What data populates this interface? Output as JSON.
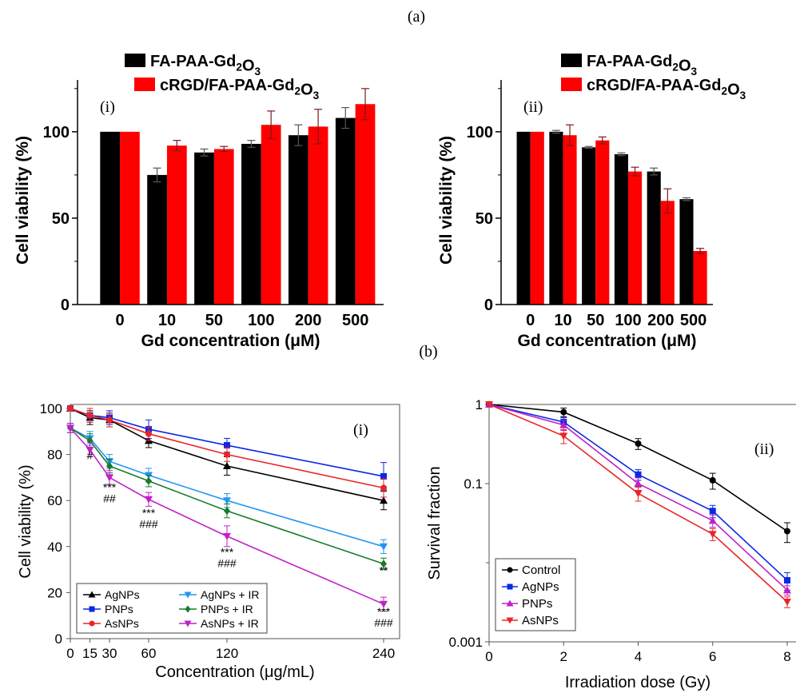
{
  "labels": {
    "a": "(a)",
    "b": "(b)"
  },
  "colors": {
    "black": "#000000",
    "red": "#ff0000",
    "blue": "#0a28e6",
    "green": "#1a7a2a",
    "lightblue": "#2196f3",
    "magenta": "#c020c8",
    "red_line": "#e8262a"
  },
  "chart_data": [
    {
      "id": "a-i",
      "type": "bar",
      "panel_label": "(i)",
      "categories": [
        "0",
        "10",
        "50",
        "100",
        "200",
        "500"
      ],
      "series": [
        {
          "name": "FA-PAA-Gd₂O₃",
          "color": "#000000",
          "values": [
            100,
            75,
            88,
            93,
            98,
            108
          ],
          "errors": [
            0,
            4,
            2,
            2,
            6,
            6
          ]
        },
        {
          "name": "cRGD/FA-PAA-Gd₂O₃",
          "color": "#ff0000",
          "values": [
            100,
            92,
            90,
            104,
            103,
            116
          ],
          "errors": [
            0,
            3,
            1.5,
            8,
            10,
            9
          ]
        }
      ],
      "xlabel": "Gd concentration (μM)",
      "ylabel": "Cell viability (%)",
      "ylim": [
        0,
        130
      ],
      "yticks": [
        "0",
        "50",
        "100"
      ],
      "legend": "top-left"
    },
    {
      "id": "a-ii",
      "type": "bar",
      "panel_label": "(ii)",
      "categories": [
        "0",
        "10",
        "50",
        "100",
        "200",
        "500"
      ],
      "series": [
        {
          "name": "FA-PAA-Gd₂O₃",
          "color": "#000000",
          "values": [
            100,
            100,
            91,
            87,
            77,
            61
          ],
          "errors": [
            0,
            0.8,
            0.5,
            0.8,
            2,
            0.8
          ]
        },
        {
          "name": "cRGD/FA-PAA-Gd₂O₃",
          "color": "#ff0000",
          "values": [
            100,
            98,
            95,
            77,
            60,
            31
          ],
          "errors": [
            0,
            6,
            2,
            2.5,
            7,
            1.5
          ]
        }
      ],
      "xlabel": "Gd concentration (μM)",
      "ylabel": "Cell viability (%)",
      "ylim": [
        0,
        130
      ],
      "yticks": [
        "0",
        "50",
        "100"
      ],
      "legend": "top-left"
    },
    {
      "id": "b-i",
      "type": "line",
      "panel_label": "(i)",
      "x": [
        0,
        15,
        30,
        60,
        120,
        240
      ],
      "xticks": [
        "0",
        "15",
        "30",
        "60",
        "120",
        "240"
      ],
      "series": [
        {
          "name": "AgNPs",
          "color": "#000000",
          "marker": "triangle-up",
          "values": [
            100,
            96,
            95,
            86,
            75,
            60
          ],
          "errors": [
            1,
            3,
            3,
            3,
            4,
            4
          ]
        },
        {
          "name": "PNPs",
          "color": "#0a28e6",
          "marker": "square",
          "values": [
            100,
            97,
            96,
            91,
            84,
            70.5
          ],
          "errors": [
            1,
            3,
            3,
            4,
            3,
            6
          ]
        },
        {
          "name": "AsNPs",
          "color": "#e8262a",
          "marker": "circle",
          "values": [
            100,
            97,
            95,
            89,
            80,
            65.5
          ],
          "errors": [
            1,
            3,
            3,
            3,
            3,
            4
          ]
        },
        {
          "name": "AgNPs + IR",
          "color": "#2196f3",
          "marker": "triangle-down",
          "values": [
            91.5,
            87,
            77,
            71,
            60,
            40
          ],
          "errors": [
            2,
            3,
            3,
            3,
            3,
            3
          ]
        },
        {
          "name": "PNPs + IR",
          "color": "#1a7a2a",
          "marker": "diamond",
          "values": [
            91.5,
            86,
            75,
            68.5,
            55.5,
            32.5
          ],
          "errors": [
            2,
            3,
            3,
            2.5,
            3,
            2.5
          ]
        },
        {
          "name": "AsNPs + IR",
          "color": "#c020c8",
          "marker": "triangle-down",
          "values": [
            91.5,
            82,
            70,
            60.5,
            44.5,
            15
          ],
          "errors": [
            2,
            3,
            3,
            3,
            4.5,
            3
          ]
        }
      ],
      "annotations": [
        {
          "x": 15,
          "y": 78,
          "lines": [
            "#"
          ]
        },
        {
          "x": 30,
          "y": 64,
          "lines": [
            "***",
            "##"
          ]
        },
        {
          "x": 60,
          "y": 53,
          "lines": [
            "***",
            "###"
          ]
        },
        {
          "x": 120,
          "y": 36,
          "lines": [
            "***",
            "###"
          ]
        },
        {
          "x": 240,
          "y": 28,
          "lines": [
            "**"
          ]
        },
        {
          "x": 240,
          "y": 10,
          "lines": [
            "***",
            "###"
          ]
        }
      ],
      "xlabel": "Concentration (μg/mL)",
      "ylabel": "Cell viability (%)",
      "xlim": [
        0,
        240
      ],
      "ylim": [
        0,
        100
      ],
      "yticks": [
        "0",
        "20",
        "40",
        "60",
        "80",
        "100"
      ],
      "legend": "bottom-left"
    },
    {
      "id": "b-ii",
      "type": "line",
      "panel_label": "(ii)",
      "yscale": "log",
      "x": [
        0,
        2,
        4,
        6,
        8
      ],
      "xticks": [
        "0",
        "2",
        "4",
        "6",
        "8"
      ],
      "series": [
        {
          "name": "Control",
          "color": "#000000",
          "marker": "circle",
          "values": [
            1,
            0.8,
            0.32,
            0.11,
            0.025
          ],
          "errors": [
            0,
            0.1,
            0.05,
            0.025,
            0.007
          ]
        },
        {
          "name": "AgNPs",
          "color": "#0a28e6",
          "marker": "square",
          "values": [
            1,
            0.6,
            0.13,
            0.045,
            0.006
          ],
          "errors": [
            0,
            0.08,
            0.02,
            0.008,
            0.0015
          ]
        },
        {
          "name": "PNPs",
          "color": "#c020c8",
          "marker": "triangle-up",
          "values": [
            1,
            0.55,
            0.1,
            0.034,
            0.0045
          ],
          "errors": [
            0,
            0.08,
            0.018,
            0.006,
            0.0006
          ]
        },
        {
          "name": "AsNPs",
          "color": "#e8262a",
          "marker": "triangle-down",
          "values": [
            1,
            0.4,
            0.075,
            0.023,
            0.0032
          ],
          "errors": [
            0,
            0.08,
            0.015,
            0.004,
            0.0005
          ]
        }
      ],
      "xlabel": "Irradiation dose (Gy)",
      "ylabel": "Survival fraction",
      "xlim": [
        0,
        8.2
      ],
      "ylim": [
        0.001,
        1
      ],
      "yticks": [
        "0.001",
        "0.1",
        "1"
      ],
      "legend": "bottom-left"
    }
  ]
}
